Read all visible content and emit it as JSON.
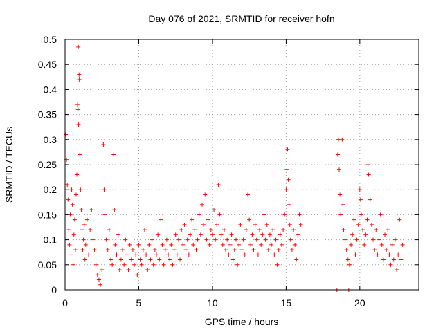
{
  "chart_data": {
    "type": "scatter",
    "title": "Day 076 of 2021, SRMTID for receiver hofn",
    "xlabel": "GPS time / hours",
    "ylabel": "SRMTID / TECUs",
    "xlim": [
      0,
      24
    ],
    "ylim": [
      0,
      0.5
    ],
    "x_ticks": [
      0,
      5,
      10,
      15,
      20
    ],
    "x_tick_labels": [
      "0",
      "5",
      "10",
      "15",
      "20"
    ],
    "y_ticks": [
      0,
      0.05,
      0.1,
      0.15,
      0.2,
      0.25,
      0.3,
      0.35,
      0.4,
      0.45,
      0.5
    ],
    "y_tick_labels": [
      "0",
      "0.05",
      "0.1",
      "0.15",
      "0.2",
      "0.25",
      "0.3",
      "0.35",
      "0.4",
      "0.45",
      "0.5"
    ],
    "grid": true,
    "marker": "+",
    "color": "#ff0000",
    "series": [
      {
        "name": "SRMTID",
        "points": [
          [
            0.05,
            0.31
          ],
          [
            0.1,
            0.26
          ],
          [
            0.15,
            0.21
          ],
          [
            0.2,
            0.18
          ],
          [
            0.25,
            0.12
          ],
          [
            0.3,
            0.09
          ],
          [
            0.35,
            0.15
          ],
          [
            0.4,
            0.07
          ],
          [
            0.45,
            0.2
          ],
          [
            0.5,
            0.17
          ],
          [
            0.55,
            0.05
          ],
          [
            0.6,
            0.11
          ],
          [
            0.65,
            0.14
          ],
          [
            0.7,
            0.08
          ],
          [
            0.75,
            0.19
          ],
          [
            0.8,
            0.23
          ],
          [
            0.85,
            0.37
          ],
          [
            0.88,
            0.36
          ],
          [
            0.9,
            0.485
          ],
          [
            0.92,
            0.33
          ],
          [
            0.95,
            0.43
          ],
          [
            0.97,
            0.42
          ],
          [
            1.0,
            0.27
          ],
          [
            1.05,
            0.2
          ],
          [
            1.1,
            0.16
          ],
          [
            1.15,
            0.12
          ],
          [
            1.2,
            0.08
          ],
          [
            1.25,
            0.1
          ],
          [
            1.3,
            0.13
          ],
          [
            1.35,
            0.06
          ],
          [
            1.4,
            0.09
          ],
          [
            1.5,
            0.14
          ],
          [
            1.6,
            0.07
          ],
          [
            1.7,
            0.12
          ],
          [
            1.8,
            0.16
          ],
          [
            1.9,
            0.1
          ],
          [
            2.0,
            0.08
          ],
          [
            2.1,
            0.05
          ],
          [
            2.2,
            0.03
          ],
          [
            2.3,
            0.02
          ],
          [
            2.4,
            0.01
          ],
          [
            2.5,
            0.04
          ],
          [
            2.6,
            0.29
          ],
          [
            2.65,
            0.2
          ],
          [
            2.7,
            0.15
          ],
          [
            2.8,
            0.1
          ],
          [
            2.9,
            0.08
          ],
          [
            3.0,
            0.12
          ],
          [
            3.1,
            0.06
          ],
          [
            3.2,
            0.05
          ],
          [
            3.3,
            0.27
          ],
          [
            3.35,
            0.16
          ],
          [
            3.4,
            0.09
          ],
          [
            3.5,
            0.07
          ],
          [
            3.6,
            0.11
          ],
          [
            3.7,
            0.04
          ],
          [
            3.8,
            0.06
          ],
          [
            3.9,
            0.08
          ],
          [
            4.0,
            0.05
          ],
          [
            4.1,
            0.1
          ],
          [
            4.2,
            0.07
          ],
          [
            4.3,
            0.04
          ],
          [
            4.4,
            0.09
          ],
          [
            4.5,
            0.06
          ],
          [
            4.6,
            0.08
          ],
          [
            4.7,
            0.05
          ],
          [
            4.8,
            0.07
          ],
          [
            4.9,
            0.03
          ],
          [
            5.0,
            0.09
          ],
          [
            5.1,
            0.06
          ],
          [
            5.2,
            0.05
          ],
          [
            5.3,
            0.08
          ],
          [
            5.4,
            0.12
          ],
          [
            5.5,
            0.07
          ],
          [
            5.6,
            0.04
          ],
          [
            5.7,
            0.09
          ],
          [
            5.8,
            0.06
          ],
          [
            5.9,
            0.1
          ],
          [
            6.0,
            0.05
          ],
          [
            6.1,
            0.08
          ],
          [
            6.2,
            0.07
          ],
          [
            6.3,
            0.11
          ],
          [
            6.4,
            0.06
          ],
          [
            6.5,
            0.14
          ],
          [
            6.6,
            0.09
          ],
          [
            6.7,
            0.05
          ],
          [
            6.8,
            0.08
          ],
          [
            6.9,
            0.1
          ],
          [
            7.0,
            0.07
          ],
          [
            7.1,
            0.06
          ],
          [
            7.2,
            0.09
          ],
          [
            7.3,
            0.05
          ],
          [
            7.4,
            0.08
          ],
          [
            7.5,
            0.11
          ],
          [
            7.6,
            0.07
          ],
          [
            7.7,
            0.1
          ],
          [
            7.8,
            0.06
          ],
          [
            7.9,
            0.12
          ],
          [
            8.0,
            0.09
          ],
          [
            8.1,
            0.13
          ],
          [
            8.2,
            0.08
          ],
          [
            8.3,
            0.1
          ],
          [
            8.4,
            0.07
          ],
          [
            8.5,
            0.11
          ],
          [
            8.6,
            0.14
          ],
          [
            8.7,
            0.09
          ],
          [
            8.8,
            0.12
          ],
          [
            8.9,
            0.08
          ],
          [
            9.0,
            0.1
          ],
          [
            9.1,
            0.15
          ],
          [
            9.2,
            0.11
          ],
          [
            9.3,
            0.17
          ],
          [
            9.4,
            0.13
          ],
          [
            9.5,
            0.19
          ],
          [
            9.6,
            0.1
          ],
          [
            9.7,
            0.14
          ],
          [
            9.8,
            0.09
          ],
          [
            9.9,
            0.12
          ],
          [
            10.0,
            0.11
          ],
          [
            10.1,
            0.16
          ],
          [
            10.2,
            0.1
          ],
          [
            10.3,
            0.13
          ],
          [
            10.4,
            0.21
          ],
          [
            10.5,
            0.15
          ],
          [
            10.6,
            0.11
          ],
          [
            10.7,
            0.09
          ],
          [
            10.8,
            0.12
          ],
          [
            10.9,
            0.08
          ],
          [
            11.0,
            0.1
          ],
          [
            11.1,
            0.07
          ],
          [
            11.2,
            0.09
          ],
          [
            11.3,
            0.11
          ],
          [
            11.4,
            0.06
          ],
          [
            11.5,
            0.08
          ],
          [
            11.6,
            0.1
          ],
          [
            11.7,
            0.05
          ],
          [
            11.8,
            0.09
          ],
          [
            11.9,
            0.13
          ],
          [
            12.0,
            0.08
          ],
          [
            12.1,
            0.1
          ],
          [
            12.2,
            0.07
          ],
          [
            12.3,
            0.12
          ],
          [
            12.4,
            0.19
          ],
          [
            12.5,
            0.14
          ],
          [
            12.6,
            0.09
          ],
          [
            12.7,
            0.11
          ],
          [
            12.8,
            0.08
          ],
          [
            12.9,
            0.13
          ],
          [
            13.0,
            0.1
          ],
          [
            13.1,
            0.07
          ],
          [
            13.2,
            0.12
          ],
          [
            13.3,
            0.09
          ],
          [
            13.4,
            0.11
          ],
          [
            13.5,
            0.15
          ],
          [
            13.6,
            0.1
          ],
          [
            13.7,
            0.13
          ],
          [
            13.8,
            0.08
          ],
          [
            13.9,
            0.11
          ],
          [
            14.0,
            0.09
          ],
          [
            14.1,
            0.12
          ],
          [
            14.2,
            0.07
          ],
          [
            14.3,
            0.1
          ],
          [
            14.4,
            0.05
          ],
          [
            14.5,
            0.08
          ],
          [
            14.6,
            0.11
          ],
          [
            14.7,
            0.09
          ],
          [
            14.8,
            0.12
          ],
          [
            14.9,
            0.15
          ],
          [
            15.0,
            0.2
          ],
          [
            15.05,
            0.24
          ],
          [
            15.1,
            0.28
          ],
          [
            15.15,
            0.22
          ],
          [
            15.2,
            0.17
          ],
          [
            15.25,
            0.13
          ],
          [
            15.3,
            0.1
          ],
          [
            15.4,
            0.08
          ],
          [
            15.5,
            0.12
          ],
          [
            15.6,
            0.09
          ],
          [
            15.7,
            0.06
          ],
          [
            15.8,
            0.11
          ],
          [
            15.9,
            0.15
          ],
          [
            16.0,
            0.13
          ],
          [
            18.45,
            0.0
          ],
          [
            18.5,
            0.27
          ],
          [
            18.55,
            0.3
          ],
          [
            18.6,
            0.24
          ],
          [
            18.65,
            0.19
          ],
          [
            18.7,
            0.15
          ],
          [
            18.8,
            0.3
          ],
          [
            18.85,
            0.17
          ],
          [
            18.9,
            0.12
          ],
          [
            19.0,
            0.1
          ],
          [
            19.1,
            0.08
          ],
          [
            19.2,
            0.06
          ],
          [
            19.25,
            0.0
          ],
          [
            19.3,
            0.05
          ],
          [
            19.4,
            0.09
          ],
          [
            19.5,
            0.11
          ],
          [
            19.6,
            0.14
          ],
          [
            19.7,
            0.07
          ],
          [
            19.8,
            0.1
          ],
          [
            19.9,
            0.13
          ],
          [
            20.0,
            0.2
          ],
          [
            20.05,
            0.18
          ],
          [
            20.1,
            0.15
          ],
          [
            20.2,
            0.12
          ],
          [
            20.3,
            0.09
          ],
          [
            20.4,
            0.11
          ],
          [
            20.5,
            0.14
          ],
          [
            20.55,
            0.25
          ],
          [
            20.6,
            0.23
          ],
          [
            20.7,
            0.18
          ],
          [
            20.8,
            0.13
          ],
          [
            20.9,
            0.1
          ],
          [
            21.0,
            0.08
          ],
          [
            21.1,
            0.12
          ],
          [
            21.2,
            0.07
          ],
          [
            21.3,
            0.1
          ],
          [
            21.4,
            0.15
          ],
          [
            21.5,
            0.09
          ],
          [
            21.6,
            0.06
          ],
          [
            21.7,
            0.11
          ],
          [
            21.8,
            0.08
          ],
          [
            21.9,
            0.12
          ],
          [
            22.0,
            0.07
          ],
          [
            22.1,
            0.05
          ],
          [
            22.2,
            0.09
          ],
          [
            22.3,
            0.06
          ],
          [
            22.4,
            0.1
          ],
          [
            22.5,
            0.04
          ],
          [
            22.6,
            0.07
          ],
          [
            22.7,
            0.14
          ],
          [
            22.8,
            0.06
          ],
          [
            22.9,
            0.09
          ]
        ]
      }
    ]
  }
}
